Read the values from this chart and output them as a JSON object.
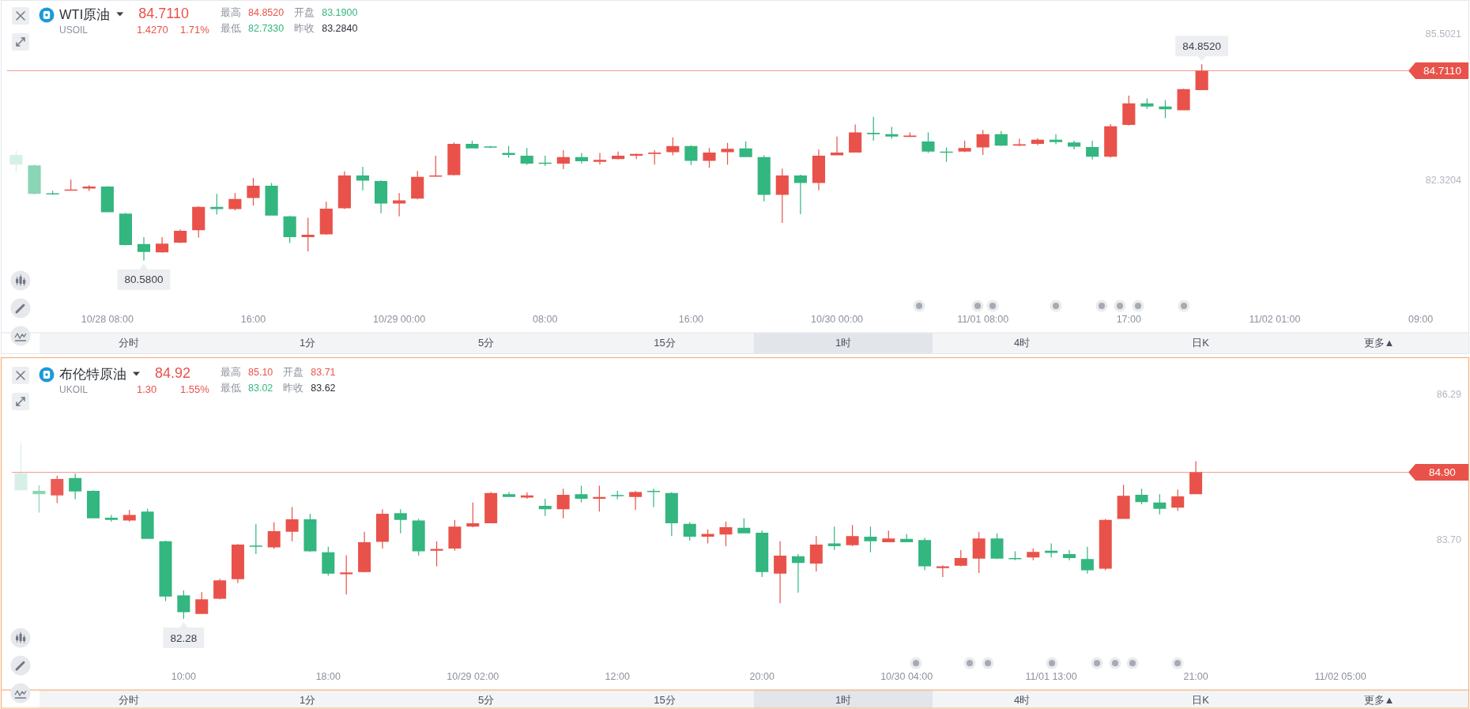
{
  "chart_data": [
    {
      "type": "candlestick",
      "title": "WTI原油",
      "subtitle": "USOIL",
      "categories": [
        null,
        null,
        null,
        null,
        null,
        "10/28 08:00",
        null,
        null,
        null,
        null,
        null,
        null,
        null,
        "16:00",
        null,
        null,
        null,
        null,
        null,
        null,
        null,
        "10/29 00:00",
        null,
        null,
        null,
        null,
        null,
        null,
        null,
        "08:00",
        null,
        null,
        null,
        null,
        null,
        null,
        null,
        "16:00",
        null,
        null,
        null,
        null,
        null,
        null,
        null,
        "10/30 00:00",
        null,
        null,
        null,
        null,
        null,
        null,
        null,
        "11/01 08:00",
        null,
        null,
        null,
        null,
        null,
        null,
        null,
        "17:00",
        null,
        null,
        null,
        null,
        null,
        null,
        null,
        "11/02 01:00",
        null,
        null,
        null,
        null,
        null,
        null,
        null,
        "09:00",
        null,
        null
      ],
      "ohlc": [
        [
          82.88,
          82.97,
          82.51,
          82.67
        ],
        [
          82.65,
          82.67,
          82.02,
          82.03
        ],
        [
          82.04,
          82.1,
          82.01,
          82.02
        ],
        [
          82.11,
          82.34,
          82.1,
          82.12
        ],
        [
          82.15,
          82.22,
          82.09,
          82.19
        ],
        [
          82.19,
          82.2,
          81.63,
          81.63
        ],
        [
          81.6,
          81.62,
          80.91,
          80.92
        ],
        [
          80.94,
          81.09,
          80.58,
          80.77
        ],
        [
          80.76,
          81.09,
          80.75,
          80.95
        ],
        [
          80.97,
          81.26,
          80.96,
          81.23
        ],
        [
          81.24,
          81.76,
          81.08,
          81.75
        ],
        [
          81.75,
          82.03,
          81.58,
          81.7
        ],
        [
          81.7,
          82.05,
          81.67,
          81.92
        ],
        [
          81.94,
          82.38,
          81.78,
          82.21
        ],
        [
          82.21,
          82.27,
          81.56,
          81.56
        ],
        [
          81.54,
          81.56,
          80.96,
          81.09
        ],
        [
          81.09,
          81.51,
          80.78,
          81.14
        ],
        [
          81.15,
          81.86,
          81.14,
          81.71
        ],
        [
          81.72,
          82.52,
          81.7,
          82.43
        ],
        [
          82.43,
          82.62,
          82.11,
          82.32
        ],
        [
          82.31,
          82.33,
          81.61,
          81.82
        ],
        [
          81.82,
          82.05,
          81.54,
          81.89
        ],
        [
          81.93,
          82.53,
          81.91,
          82.4
        ],
        [
          82.41,
          82.86,
          82.4,
          82.43
        ],
        [
          82.44,
          83.15,
          82.43,
          83.12
        ],
        [
          83.12,
          83.19,
          83.02,
          83.02
        ],
        [
          83.06,
          83.07,
          83.03,
          83.04
        ],
        [
          82.92,
          83.07,
          82.82,
          82.88
        ],
        [
          82.86,
          83.03,
          82.66,
          82.69
        ],
        [
          82.71,
          82.86,
          82.64,
          82.69
        ],
        [
          82.69,
          82.98,
          82.57,
          82.83
        ],
        [
          82.83,
          82.92,
          82.69,
          82.74
        ],
        [
          82.73,
          82.92,
          82.67,
          82.77
        ],
        [
          82.79,
          82.95,
          82.78,
          82.86
        ],
        [
          82.86,
          82.91,
          82.79,
          82.9
        ],
        [
          82.9,
          82.98,
          82.67,
          82.93
        ],
        [
          82.94,
          83.26,
          82.87,
          83.07
        ],
        [
          83.07,
          83.09,
          82.66,
          82.75
        ],
        [
          82.75,
          83.03,
          82.6,
          82.93
        ],
        [
          82.94,
          83.14,
          82.67,
          83.01
        ],
        [
          83.02,
          83.17,
          82.83,
          82.83
        ],
        [
          82.83,
          82.87,
          81.87,
          82.01
        ],
        [
          82.01,
          82.58,
          81.4,
          82.43
        ],
        [
          82.43,
          82.45,
          81.59,
          82.27
        ],
        [
          82.27,
          83.0,
          82.11,
          82.86
        ],
        [
          82.87,
          83.28,
          82.87,
          82.93
        ],
        [
          82.93,
          83.54,
          82.93,
          83.37
        ],
        [
          83.36,
          83.71,
          83.19,
          83.33
        ],
        [
          83.33,
          83.49,
          83.23,
          83.28
        ],
        [
          83.27,
          83.37,
          83.27,
          83.3
        ],
        [
          83.17,
          83.37,
          82.92,
          82.95
        ],
        [
          82.95,
          83.04,
          82.73,
          82.93
        ],
        [
          82.95,
          83.19,
          82.94,
          83.03
        ],
        [
          83.04,
          83.42,
          82.88,
          83.33
        ],
        [
          83.33,
          83.4,
          83.07,
          83.08
        ],
        [
          83.08,
          83.23,
          83.07,
          83.11
        ],
        [
          83.12,
          83.24,
          83.09,
          83.21
        ],
        [
          83.21,
          83.33,
          83.11,
          83.16
        ],
        [
          83.15,
          83.19,
          83.0,
          83.06
        ],
        [
          83.05,
          83.19,
          82.78,
          82.84
        ],
        [
          82.84,
          83.55,
          82.82,
          83.5
        ],
        [
          83.53,
          84.17,
          83.52,
          84.0
        ],
        [
          84.0,
          84.11,
          83.88,
          83.93
        ],
        [
          83.93,
          84.07,
          83.68,
          83.87
        ],
        [
          83.85,
          84.32,
          83.85,
          84.31
        ],
        [
          84.29,
          84.852,
          84.29,
          84.711
        ],
        null,
        null,
        null,
        null,
        null,
        null,
        null,
        null,
        null,
        null,
        null,
        null,
        null,
        null
      ],
      "colors": [
        "#33b67f",
        "#33b67f",
        "#33b67f",
        "#e9524a",
        "#e9524a",
        "#33b67f",
        "#33b67f",
        "#33b67f",
        "#e9524a",
        "#e9524a",
        "#e9524a",
        "#33b67f",
        "#e9524a",
        "#e9524a",
        "#33b67f",
        "#33b67f",
        "#e9524a",
        "#e9524a",
        "#e9524a",
        "#33b67f",
        "#33b67f",
        "#e9524a",
        "#e9524a",
        "#e9524a",
        "#e9524a",
        "#33b67f",
        "#33b67f",
        "#33b67f",
        "#33b67f",
        "#33b67f",
        "#e9524a",
        "#33b67f",
        "#e9524a",
        "#e9524a",
        "#e9524a",
        "#e9524a",
        "#e9524a",
        "#33b67f",
        "#e9524a",
        "#e9524a",
        "#33b67f",
        "#33b67f",
        "#e9524a",
        "#33b67f",
        "#e9524a",
        "#e9524a",
        "#e9524a",
        "#33b67f",
        "#33b67f",
        "#e9524a",
        "#33b67f",
        "#33b67f",
        "#e9524a",
        "#e9524a",
        "#33b67f",
        "#e9524a",
        "#e9524a",
        "#33b67f",
        "#33b67f",
        "#33b67f",
        "#e9524a",
        "#e9524a",
        "#33b67f",
        "#33b67f",
        "#e9524a",
        "#e9524a",
        null,
        null,
        null,
        null,
        null,
        null,
        null,
        null,
        null,
        null,
        null,
        null,
        null,
        null
      ],
      "ylim": [
        79.01,
        86.24
      ],
      "yticks": [
        85.5021,
        82.3204
      ],
      "ref_lines": [
        {
          "axis": "y",
          "value": 84.711,
          "label": "84.7110",
          "color": "#e9524a"
        }
      ],
      "annotations": [
        "84.7110",
        "1.4270",
        "1.71%",
        "最高",
        "84.8520",
        "开盘",
        "83.1900",
        "最低",
        "82.7330",
        "昨收",
        "83.2840",
        "分时",
        "1分",
        "5分",
        "15分",
        "1时",
        "4时",
        "日K",
        "更多▲",
        {
          "text": "84.8520",
          "y": 84.852
        },
        {
          "text": "80.5800",
          "y": 80.58
        }
      ]
    },
    {
      "type": "candlestick",
      "title": "布伦特原油",
      "subtitle": "UKOIL",
      "categories": [
        null,
        null,
        null,
        null,
        null,
        null,
        null,
        null,
        null,
        "10:00",
        null,
        null,
        null,
        null,
        null,
        null,
        null,
        "18:00",
        null,
        null,
        null,
        null,
        null,
        null,
        null,
        "10/29 02:00",
        null,
        null,
        null,
        null,
        null,
        null,
        null,
        "12:00",
        null,
        null,
        null,
        null,
        null,
        null,
        null,
        "20:00",
        null,
        null,
        null,
        null,
        null,
        null,
        null,
        "10/30 04:00",
        null,
        null,
        null,
        null,
        null,
        null,
        null,
        "11/01 13:00",
        null,
        null,
        null,
        null,
        null,
        null,
        null,
        "21:00",
        null,
        null,
        null,
        null,
        null,
        null,
        null,
        "11/02 05:00",
        null,
        null,
        null,
        null,
        null,
        null
      ],
      "ohlc": [
        [
          84.88,
          85.42,
          84.58,
          84.58
        ],
        [
          84.57,
          84.67,
          84.18,
          84.51
        ],
        [
          84.49,
          84.84,
          84.35,
          84.78
        ],
        [
          84.8,
          84.88,
          84.42,
          84.56
        ],
        [
          84.57,
          84.58,
          84.08,
          84.08
        ],
        [
          84.09,
          84.14,
          84.02,
          84.05
        ],
        [
          84.04,
          84.23,
          84.02,
          84.14
        ],
        [
          84.2,
          84.25,
          83.71,
          83.71
        ],
        [
          83.67,
          83.68,
          82.6,
          82.68
        ],
        [
          82.7,
          82.79,
          82.28,
          82.4
        ],
        [
          82.37,
          82.76,
          82.37,
          82.63
        ],
        [
          82.64,
          83.0,
          82.63,
          82.97
        ],
        [
          82.99,
          83.62,
          82.92,
          83.61
        ],
        [
          83.59,
          83.98,
          83.44,
          83.57
        ],
        [
          83.56,
          84.01,
          83.53,
          83.85
        ],
        [
          83.84,
          84.28,
          83.67,
          84.06
        ],
        [
          84.06,
          84.16,
          83.48,
          83.49
        ],
        [
          83.47,
          83.57,
          83.05,
          83.09
        ],
        [
          83.08,
          83.42,
          82.72,
          83.11
        ],
        [
          83.12,
          83.84,
          83.11,
          83.65
        ],
        [
          83.66,
          84.24,
          83.54,
          84.16
        ],
        [
          84.17,
          84.24,
          83.81,
          84.05
        ],
        [
          84.04,
          84.07,
          83.41,
          83.49
        ],
        [
          83.5,
          83.67,
          83.22,
          83.53
        ],
        [
          83.54,
          84.05,
          83.5,
          83.93
        ],
        [
          83.93,
          84.36,
          83.92,
          83.99
        ],
        [
          83.99,
          84.55,
          83.99,
          84.53
        ],
        [
          84.51,
          84.55,
          84.46,
          84.46
        ],
        [
          84.45,
          84.54,
          84.43,
          84.49
        ],
        [
          84.3,
          84.43,
          84.12,
          84.24
        ],
        [
          84.24,
          84.61,
          84.08,
          84.5
        ],
        [
          84.51,
          84.66,
          84.36,
          84.43
        ],
        [
          84.43,
          84.66,
          84.2,
          84.46
        ],
        [
          84.49,
          84.57,
          84.42,
          84.48
        ],
        [
          84.46,
          84.57,
          84.23,
          84.55
        ],
        [
          84.57,
          84.61,
          84.28,
          84.55
        ],
        [
          84.53,
          84.55,
          83.76,
          83.99
        ],
        [
          83.98,
          84.01,
          83.68,
          83.75
        ],
        [
          83.75,
          83.88,
          83.63,
          83.8
        ],
        [
          83.79,
          84.02,
          83.58,
          83.92
        ],
        [
          83.91,
          84.08,
          83.81,
          83.81
        ],
        [
          83.82,
          83.86,
          83.03,
          83.12
        ],
        [
          83.09,
          83.67,
          82.56,
          83.41
        ],
        [
          83.4,
          83.44,
          82.75,
          83.28
        ],
        [
          83.27,
          83.76,
          83.13,
          83.61
        ],
        [
          83.63,
          83.93,
          83.51,
          83.58
        ],
        [
          83.6,
          83.96,
          83.58,
          83.76
        ],
        [
          83.75,
          83.93,
          83.47,
          83.67
        ],
        [
          83.65,
          83.86,
          83.65,
          83.72
        ],
        [
          83.71,
          83.8,
          83.65,
          83.65
        ],
        [
          83.69,
          83.73,
          83.15,
          83.22
        ],
        [
          83.19,
          83.24,
          83.03,
          83.22
        ],
        [
          83.23,
          83.51,
          83.22,
          83.37
        ],
        [
          83.36,
          83.83,
          83.1,
          83.72
        ],
        [
          83.72,
          83.81,
          83.35,
          83.36
        ],
        [
          83.37,
          83.49,
          83.33,
          83.35
        ],
        [
          83.38,
          83.54,
          83.33,
          83.48
        ],
        [
          83.5,
          83.63,
          83.38,
          83.46
        ],
        [
          83.44,
          83.51,
          83.33,
          83.37
        ],
        [
          83.35,
          83.57,
          83.09,
          83.15
        ],
        [
          83.18,
          84.07,
          83.15,
          84.05
        ],
        [
          84.07,
          84.68,
          84.07,
          84.48
        ],
        [
          84.5,
          84.61,
          84.33,
          84.37
        ],
        [
          84.36,
          84.51,
          84.15,
          84.25
        ],
        [
          84.27,
          84.59,
          84.21,
          84.47
        ],
        [
          84.51,
          85.1,
          84.51,
          84.9
        ],
        null,
        null,
        null,
        null,
        null,
        null,
        null,
        null,
        null,
        null,
        null,
        null,
        null,
        null
      ],
      "colors": [
        "#33b67f",
        "#33b67f",
        "#e9524a",
        "#33b67f",
        "#33b67f",
        "#33b67f",
        "#e9524a",
        "#33b67f",
        "#33b67f",
        "#33b67f",
        "#e9524a",
        "#e9524a",
        "#e9524a",
        "#33b67f",
        "#e9524a",
        "#e9524a",
        "#33b67f",
        "#33b67f",
        "#e9524a",
        "#e9524a",
        "#e9524a",
        "#33b67f",
        "#33b67f",
        "#e9524a",
        "#e9524a",
        "#e9524a",
        "#e9524a",
        "#33b67f",
        "#e9524a",
        "#33b67f",
        "#e9524a",
        "#33b67f",
        "#e9524a",
        "#33b67f",
        "#e9524a",
        "#33b67f",
        "#33b67f",
        "#33b67f",
        "#e9524a",
        "#e9524a",
        "#33b67f",
        "#33b67f",
        "#e9524a",
        "#33b67f",
        "#e9524a",
        "#33b67f",
        "#e9524a",
        "#33b67f",
        "#e9524a",
        "#33b67f",
        "#33b67f",
        "#e9524a",
        "#e9524a",
        "#e9524a",
        "#33b67f",
        "#33b67f",
        "#e9524a",
        "#33b67f",
        "#33b67f",
        "#33b67f",
        "#e9524a",
        "#e9524a",
        "#33b67f",
        "#33b67f",
        "#e9524a",
        "#e9524a",
        null,
        null,
        null,
        null,
        null,
        null,
        null,
        null,
        null,
        null,
        null,
        null,
        null,
        null
      ],
      "ylim": [
        81.01,
        86.95
      ],
      "yticks": [
        86.29,
        {
          "value": 83.7,
          "label": "83.70"
        }
      ],
      "ref_lines": [
        {
          "axis": "y",
          "value": 84.9,
          "label": "84.90",
          "color": "#e9524a"
        }
      ],
      "annotations": [
        "84.92",
        "1.30",
        "1.55%",
        "最高",
        "85.10",
        "开盘",
        "83.71",
        "最低",
        "83.02",
        "昨收",
        "83.62",
        "分时",
        "1分",
        "5分",
        "15分",
        "1时",
        "4时",
        "日K",
        "更多▲",
        {
          "text": "82.28",
          "y": 82.28
        }
      ]
    }
  ]
}
